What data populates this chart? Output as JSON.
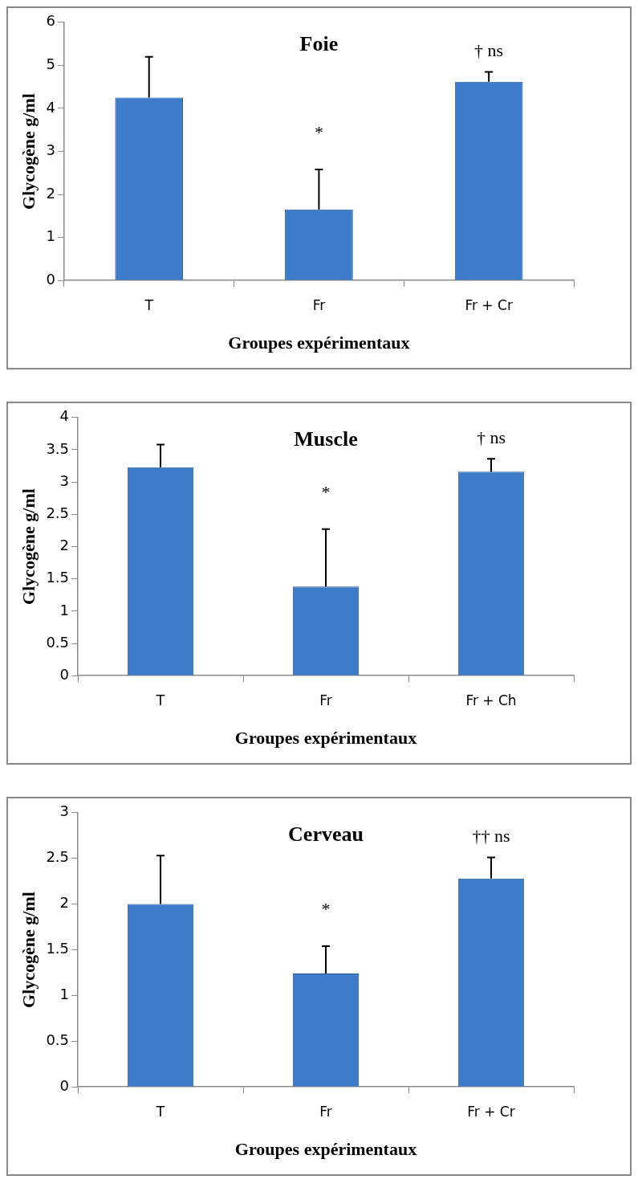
{
  "chart_data": [
    {
      "type": "bar",
      "title": "Foie",
      "xlabel": "Groupes expérimentaux",
      "ylabel": "Glycogène g/ml",
      "categories": [
        "T",
        "Fr",
        "Fr + Cr"
      ],
      "values": [
        4.25,
        1.65,
        4.62
      ],
      "color": "#3e7cc9",
      "errors": [
        [
          4.25,
          5.2
        ],
        [
          1.65,
          2.58
        ],
        [
          4.62,
          4.85
        ]
      ],
      "ylim": [
        0,
        6
      ],
      "yticks": [
        0,
        1,
        2,
        3,
        4,
        5,
        6
      ],
      "grid": false,
      "legend": false,
      "annotations": [
        "*",
        "† ns"
      ]
    },
    {
      "type": "bar",
      "title": "Muscle",
      "xlabel": "Groupes expérimentaux",
      "ylabel": "Glycogène g/ml",
      "categories": [
        "T",
        "Fr",
        "Fr + Ch"
      ],
      "values": [
        3.23,
        1.38,
        3.16
      ],
      "color": "#3e7cc9",
      "errors": [
        [
          3.23,
          3.58
        ],
        [
          1.38,
          2.27
        ],
        [
          3.16,
          3.36
        ]
      ],
      "ylim": [
        0,
        4
      ],
      "yticks": [
        0,
        0.5,
        1,
        1.5,
        2,
        2.5,
        3,
        3.5,
        4
      ],
      "grid": false,
      "legend": false,
      "annotations": [
        "*",
        "† ns"
      ]
    },
    {
      "type": "bar",
      "title": "Cerveau",
      "xlabel": "Groupes expérimentaux",
      "ylabel": "Glycogène g/ml",
      "categories": [
        "T",
        "Fr",
        "Fr + Cr"
      ],
      "values": [
        2.0,
        1.24,
        2.28
      ],
      "color": "#3e7cc9",
      "errors": [
        [
          2.0,
          2.53
        ],
        [
          1.24,
          1.54
        ],
        [
          2.28,
          2.51
        ]
      ],
      "ylim": [
        0,
        3
      ],
      "yticks": [
        0,
        0.5,
        1,
        1.5,
        2,
        2.5,
        3
      ],
      "grid": false,
      "legend": false,
      "annotations": [
        "*",
        "†† ns"
      ]
    }
  ]
}
